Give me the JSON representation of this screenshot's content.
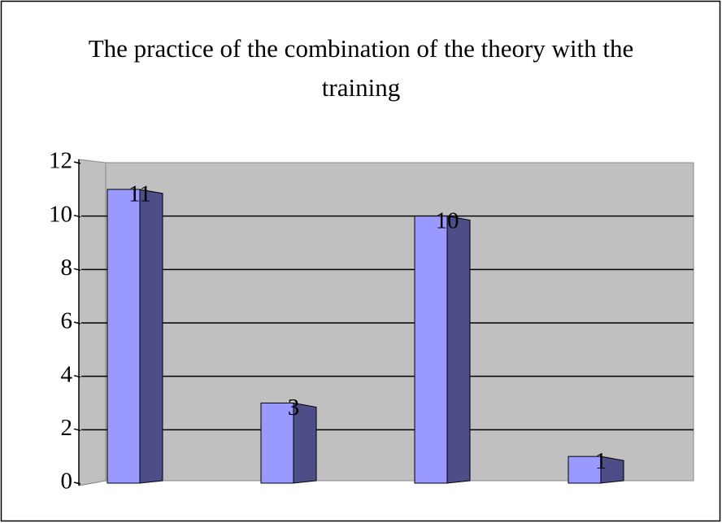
{
  "chart_data": {
    "type": "bar3d",
    "title": "The practice of the combination of the theory with the training",
    "categories": [
      null,
      null,
      null,
      null
    ],
    "values": [
      11,
      3,
      10,
      1
    ],
    "color": "#9999ff",
    "side_color": "#4d4d88",
    "wall_color": "#c0c0c0",
    "ylim": [
      0,
      12
    ],
    "yticks": [
      0,
      2,
      4,
      6,
      8,
      10,
      12
    ],
    "grid": true
  }
}
